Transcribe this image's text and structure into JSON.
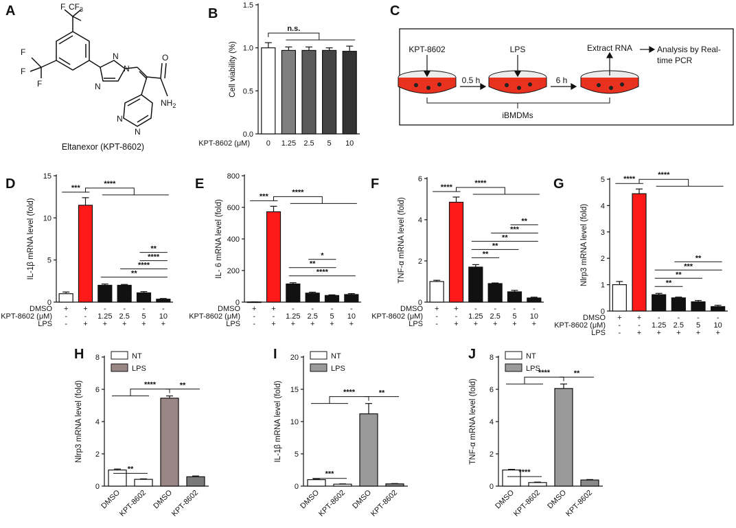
{
  "colors": {
    "white": "#ffffff",
    "red": "#ff1a1a",
    "black": "#111111",
    "gray_b": "#7f7f7f",
    "dark_b": "#3a3a3a",
    "mid_b": "#5a5a5a",
    "lps_h": "#9a8684",
    "lps_ij": "#9a9a9a",
    "dish_red": "#e8311f",
    "dish_cell": "#f3c0a8"
  },
  "panelA": {
    "label": "A",
    "caption": "Eltanexor (KPT-8602)",
    "atoms": {
      "cf3": "CF",
      "sub3": "3",
      "f": "F",
      "n": "N",
      "o": "O",
      "nh2": "NH",
      "sub2": "2"
    }
  },
  "panelC": {
    "label": "C",
    "drug": "KPT-8602",
    "lps": "LPS",
    "t1": "0.5 h",
    "t2": "6 h",
    "extract": "Extract RNA",
    "analysis1": "Analysis by Real-",
    "analysis2": "time PCR",
    "cells": "iBMDMs"
  },
  "chart_data": [
    {
      "panel": "B",
      "type": "bar",
      "title": "",
      "ylabel": "Cell viability (%)",
      "ylim": [
        0,
        1.5
      ],
      "yticks": [
        0,
        0.5,
        1.0,
        1.5
      ],
      "ytick_labels": [
        "0.0",
        "0.5",
        "1.0",
        "1.5"
      ],
      "grid": false,
      "categories": [
        "0",
        "1.25",
        "2.5",
        "5",
        "10"
      ],
      "values": [
        1.0,
        0.97,
        0.97,
        0.97,
        0.96
      ],
      "errors": [
        0.06,
        0.04,
        0.04,
        0.03,
        0.06
      ],
      "colors": [
        "#ffffff",
        "#7f7f7f",
        "#5a5a5a",
        "#444444",
        "#333333"
      ],
      "row_labels": [
        "KPT-8602 (μM)"
      ],
      "significance": [
        {
          "from": 0,
          "to_group": [
            1,
            4
          ],
          "label": "n.s."
        }
      ]
    },
    {
      "panel": "D",
      "type": "bar",
      "ylabel": "IL-1β mRNA level (fold)",
      "ylim": [
        0,
        15
      ],
      "yticks": [
        0,
        5,
        10,
        15
      ],
      "ytick_labels": [
        "0",
        "5",
        "10",
        "15"
      ],
      "grid": false,
      "values": [
        1.0,
        11.5,
        2.0,
        2.0,
        1.1,
        0.35
      ],
      "errors": [
        0.2,
        0.9,
        0.15,
        0.1,
        0.15,
        0.08
      ],
      "colors": [
        "#ffffff",
        "#ff1a1a",
        "#111111",
        "#111111",
        "#111111",
        "#111111"
      ],
      "condition_rows": [
        {
          "label": "DMSO",
          "cells": [
            "+",
            "+",
            "-",
            "-",
            "-",
            "-"
          ]
        },
        {
          "label": "KPT-8602 (μM)",
          "cells": [
            "-",
            "-",
            "1.25",
            "2.5",
            "5",
            "10"
          ]
        },
        {
          "label": "LPS",
          "cells": [
            "-",
            "+",
            "+",
            "+",
            "+",
            "+"
          ]
        }
      ],
      "significance": [
        {
          "from": 0,
          "to": 1,
          "label": "***"
        },
        {
          "from": 1,
          "to_group": [
            2,
            5
          ],
          "label": "****"
        },
        {
          "from": 2,
          "to": 5,
          "label": "**"
        },
        {
          "from": 3,
          "to": 5,
          "label": "****"
        },
        {
          "from": 4,
          "to": 5,
          "label": "****"
        },
        {
          "from": 4,
          "to": 5,
          "label": "**",
          "short": true
        }
      ]
    },
    {
      "panel": "E",
      "type": "bar",
      "ylabel": "IL- 6 mRNA level (fold)",
      "ylim": [
        0,
        800
      ],
      "yticks": [
        0,
        200,
        400,
        600,
        800
      ],
      "ytick_labels": [
        "0",
        "200",
        "400",
        "600",
        "800"
      ],
      "grid": false,
      "values": [
        1,
        572,
        115,
        57,
        42,
        48
      ],
      "errors": [
        0.5,
        35,
        8,
        6,
        4,
        6
      ],
      "colors": [
        "#ffffff",
        "#ff1a1a",
        "#111111",
        "#111111",
        "#111111",
        "#111111"
      ],
      "condition_rows": [
        {
          "label": "DMSO",
          "cells": [
            "+",
            "+",
            "-",
            "-",
            "-",
            "-"
          ]
        },
        {
          "label": "KPT-8602 (μM)",
          "cells": [
            "-",
            "-",
            "1.25",
            "2.5",
            "5",
            "10"
          ]
        },
        {
          "label": "LPS",
          "cells": [
            "-",
            "+",
            "+",
            "+",
            "+",
            "+"
          ]
        }
      ],
      "significance": [
        {
          "from": 0,
          "to": 1,
          "label": "***"
        },
        {
          "from": 1,
          "to_group": [
            2,
            5
          ],
          "label": "****"
        },
        {
          "from": 2,
          "to": 5,
          "label": "****"
        },
        {
          "from": 2,
          "to": 4,
          "label": "**"
        },
        {
          "from": 3,
          "to": 4,
          "label": "*"
        }
      ]
    },
    {
      "panel": "F",
      "type": "bar",
      "ylabel": "TNF-α mRNA level (fold)",
      "ylim": [
        0,
        6
      ],
      "yticks": [
        0,
        2,
        4,
        6
      ],
      "ytick_labels": [
        "0",
        "2",
        "4",
        "6"
      ],
      "grid": false,
      "values": [
        1.0,
        4.85,
        1.7,
        0.9,
        0.5,
        0.2
      ],
      "errors": [
        0.06,
        0.25,
        0.12,
        0.03,
        0.07,
        0.04
      ],
      "colors": [
        "#ffffff",
        "#ff1a1a",
        "#111111",
        "#111111",
        "#111111",
        "#111111"
      ],
      "condition_rows": [
        {
          "label": "DMSO",
          "cells": [
            "+",
            "+",
            "-",
            "-",
            "-",
            "-"
          ]
        },
        {
          "label": "KPT-8602 (μM)",
          "cells": [
            "-",
            "-",
            "1.25",
            "2.5",
            "5",
            "10"
          ]
        },
        {
          "label": "LPS",
          "cells": [
            "-",
            "+",
            "+",
            "+",
            "+",
            "+"
          ]
        }
      ],
      "significance": [
        {
          "from": 0,
          "to": 1,
          "label": "****"
        },
        {
          "from": 1,
          "to_group": [
            2,
            5
          ],
          "label": "****"
        },
        {
          "from": 2,
          "to": 3,
          "label": "**"
        },
        {
          "from": 2,
          "to": 4,
          "label": "**"
        },
        {
          "from": 2,
          "to": 5,
          "label": "**"
        },
        {
          "from": 3,
          "to": 5,
          "label": "***"
        },
        {
          "from": 4,
          "to": 5,
          "label": "**"
        }
      ]
    },
    {
      "panel": "G",
      "type": "bar",
      "ylabel": "Nlrp3 mRNA level (fold)",
      "ylim": [
        0,
        5
      ],
      "yticks": [
        0,
        1,
        2,
        3,
        4,
        5
      ],
      "ytick_labels": [
        "0",
        "1",
        "2",
        "3",
        "4",
        "5"
      ],
      "grid": false,
      "values": [
        1.0,
        4.45,
        0.62,
        0.5,
        0.35,
        0.17
      ],
      "errors": [
        0.12,
        0.18,
        0.05,
        0.03,
        0.05,
        0.05
      ],
      "colors": [
        "#ffffff",
        "#ff1a1a",
        "#111111",
        "#111111",
        "#111111",
        "#111111"
      ],
      "condition_rows": [
        {
          "label": "DMSO",
          "cells": [
            "+",
            "+",
            "-",
            "-",
            "-",
            "-"
          ]
        },
        {
          "label": "KPT-8602 (μM)",
          "cells": [
            "-",
            "-",
            "1.25",
            "2.5",
            "5",
            "10"
          ]
        },
        {
          "label": "LPS",
          "cells": [
            "-",
            "+",
            "+",
            "+",
            "+",
            "+"
          ]
        }
      ],
      "significance": [
        {
          "from": 0,
          "to": 1,
          "label": "****"
        },
        {
          "from": 1,
          "to_group": [
            2,
            5
          ],
          "label": "****"
        },
        {
          "from": 2,
          "to": 3,
          "label": "**"
        },
        {
          "from": 2,
          "to": 4,
          "label": "**"
        },
        {
          "from": 2,
          "to": 5,
          "label": "***"
        },
        {
          "from": 3,
          "to": 5,
          "label": "**"
        }
      ]
    },
    {
      "panel": "H",
      "type": "bar",
      "ylabel": "Nlrp3 mRNA level (fold)",
      "ylim": [
        0,
        8
      ],
      "yticks": [
        0,
        2,
        4,
        6,
        8
      ],
      "ytick_labels": [
        "0",
        "2",
        "4",
        "6",
        "8"
      ],
      "grid": false,
      "categories": [
        "DMSO",
        "KPT-8602",
        "DMSO",
        "KPT-8602"
      ],
      "values": [
        1.0,
        0.42,
        5.45,
        0.58
      ],
      "errors": [
        0.06,
        0.03,
        0.14,
        0.05
      ],
      "colors": [
        "#ffffff",
        "#ffffff",
        "#9a8684",
        "#7a7a7a"
      ],
      "legend": [
        "NT",
        "LPS"
      ],
      "legend_position": "top-left",
      "significance": [
        {
          "from": 0,
          "to": 1,
          "label": "**"
        },
        {
          "group": [
            0,
            1
          ],
          "to": 2,
          "label": "****"
        },
        {
          "from": 2,
          "to": 3,
          "label": "**"
        }
      ]
    },
    {
      "panel": "I",
      "type": "bar",
      "ylabel": "IL-1β mRNA level (fold)",
      "ylim": [
        0,
        20
      ],
      "yticks": [
        0,
        5,
        10,
        15,
        20
      ],
      "ytick_labels": [
        "0",
        "5",
        "10",
        "15",
        "20"
      ],
      "grid": false,
      "categories": [
        "DMSO",
        "KPT-8602",
        "DMSO",
        "KPT-8602"
      ],
      "values": [
        1.0,
        0.3,
        11.2,
        0.35
      ],
      "errors": [
        0.08,
        0.05,
        1.6,
        0.05
      ],
      "colors": [
        "#ffffff",
        "#ffffff",
        "#9a9a9a",
        "#8a8a8a"
      ],
      "legend": [
        "NT",
        "LPS"
      ],
      "legend_position": "top-left",
      "significance": [
        {
          "from": 0,
          "to": 1,
          "label": "***"
        },
        {
          "group": [
            0,
            1
          ],
          "to": 2,
          "label": "****"
        },
        {
          "from": 2,
          "to": 3,
          "label": "**"
        }
      ]
    },
    {
      "panel": "J",
      "type": "bar",
      "ylabel": "TNF-α mRNA level (fold)",
      "ylim": [
        0,
        8
      ],
      "yticks": [
        0,
        2,
        4,
        6,
        8
      ],
      "ytick_labels": [
        "0",
        "2",
        "4",
        "6",
        "8"
      ],
      "grid": false,
      "categories": [
        "DMSO",
        "KPT-8602",
        "DMSO",
        "KPT-8602"
      ],
      "values": [
        1.0,
        0.22,
        6.05,
        0.38
      ],
      "errors": [
        0.04,
        0.03,
        0.28,
        0.03
      ],
      "colors": [
        "#ffffff",
        "#ffffff",
        "#9a9a9a",
        "#8a8a8a"
      ],
      "legend": [
        "NT",
        "LPS"
      ],
      "legend_position": "top-left",
      "significance": [
        {
          "from": 0,
          "to": 1,
          "label": "****"
        },
        {
          "group": [
            0,
            1
          ],
          "to": 2,
          "label": "****"
        },
        {
          "from": 2,
          "to": 3,
          "label": "**"
        }
      ]
    }
  ]
}
